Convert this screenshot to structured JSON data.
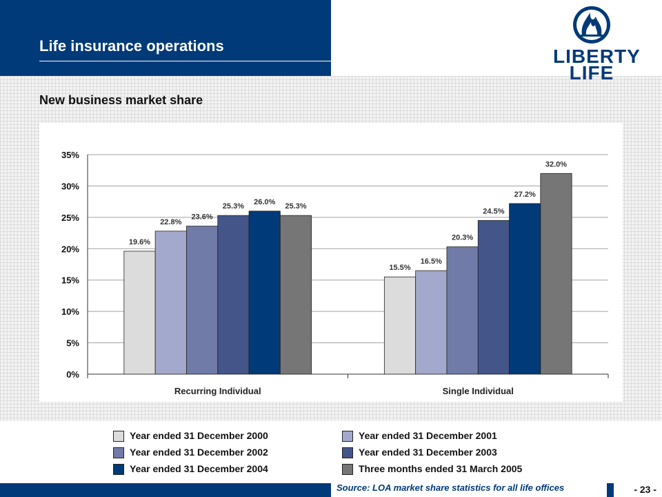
{
  "header": {
    "title": "Life insurance operations"
  },
  "logo": {
    "line1": "LIBERTY",
    "line2": "LIFE"
  },
  "subtitle": "New business market share",
  "colors": {
    "brand_navy": "#003a78",
    "series": [
      "#dcdcdc",
      "#a3a9cc",
      "#717ba8",
      "#44558a",
      "#003a78",
      "#767676"
    ]
  },
  "legend": [
    "Year ended 31 December 2000",
    "Year ended 31 December 2001",
    "Year ended 31 December 2002",
    "Year ended 31 December 2003",
    "Year ended 31 December 2004",
    "Three months ended 31 March 2005"
  ],
  "chart_data": {
    "type": "bar",
    "categories": [
      "Recurring Individual",
      "Single Individual"
    ],
    "series": [
      {
        "name": "Year ended 31 December 2000",
        "values": [
          19.6,
          15.5
        ]
      },
      {
        "name": "Year ended 31 December 2001",
        "values": [
          22.8,
          16.5
        ]
      },
      {
        "name": "Year ended 31 December 2002",
        "values": [
          23.6,
          20.3
        ]
      },
      {
        "name": "Year ended 31 December 2003",
        "values": [
          25.3,
          24.5
        ]
      },
      {
        "name": "Year ended 31 December 2004",
        "values": [
          26.0,
          27.2
        ]
      },
      {
        "name": "Three months ended 31 March 2005",
        "values": [
          25.3,
          32.0
        ]
      }
    ],
    "ylim": [
      0,
      35
    ],
    "yticks": [
      "0%",
      "5%",
      "10%",
      "15%",
      "20%",
      "25%",
      "30%",
      "35%"
    ],
    "grid": true,
    "legend_position": "bottom"
  },
  "footer": {
    "source": "Source: LOA market share statistics for all life offices",
    "page": "- 23 -"
  }
}
